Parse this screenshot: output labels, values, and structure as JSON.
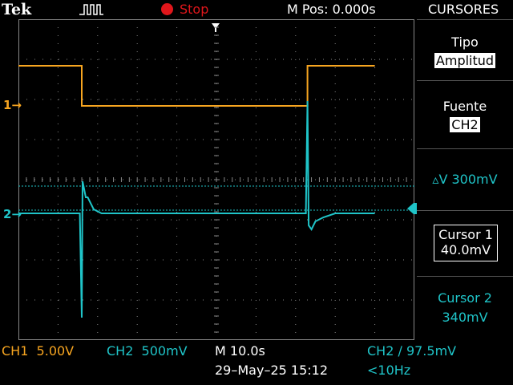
{
  "header": {
    "brand": "Tek",
    "trigger_icon": "pulse-icon",
    "run_state": "Stop",
    "run_state_color": "#e0161b",
    "position_label": "M Pos: 0.000s",
    "menu_title": "CURSORES"
  },
  "side_menu": {
    "tipo_label": "Tipo",
    "tipo_value": "Amplitud",
    "fuente_label": "Fuente",
    "fuente_value": "CH2",
    "delta_v": "▵V 300mV",
    "cursor1_label": "Cursor 1",
    "cursor1_value": "40.0mV",
    "cursor2_label": "Cursor 2",
    "cursor2_value": "340mV"
  },
  "status_bar": {
    "ch1_scale": "CH1  5.00V",
    "ch2_scale": "CH2  500mV",
    "timebase": "M 10.0s",
    "trigger": "CH2 ∕ 97.5mV",
    "datetime": "29–May–25 15:12",
    "freq": "<10Hz"
  },
  "markers": {
    "ch1": "1→",
    "ch2": "2→"
  },
  "colors": {
    "ch1": "#f7a520",
    "ch2": "#1fc4c8",
    "grid": "#888888"
  },
  "chart_data": {
    "type": "line",
    "series": [
      {
        "name": "CH1",
        "time_s": [
          -50,
          -34,
          -34,
          23,
          23,
          40
        ],
        "volts": [
          7.5,
          7.5,
          2.5,
          2.5,
          7.5,
          7.5
        ]
      },
      {
        "name": "CH2",
        "time_s": [
          -50,
          -34.5,
          -34,
          -33.8,
          -33,
          -32.5,
          -31,
          -29,
          -5,
          22.6,
          23,
          23.3,
          24,
          25,
          27,
          30,
          40
        ],
        "volts": [
          0.0,
          0.0,
          -1.3,
          0.4,
          0.2,
          0.2,
          0.05,
          0.0,
          0.0,
          0.0,
          1.4,
          -0.15,
          -0.2,
          -0.1,
          -0.05,
          0.0,
          0.0
        ]
      }
    ],
    "cursors_mV": [
      40,
      340
    ],
    "xlim": [
      -50,
      50
    ],
    "divisions": {
      "x": 10,
      "y": 8
    }
  }
}
